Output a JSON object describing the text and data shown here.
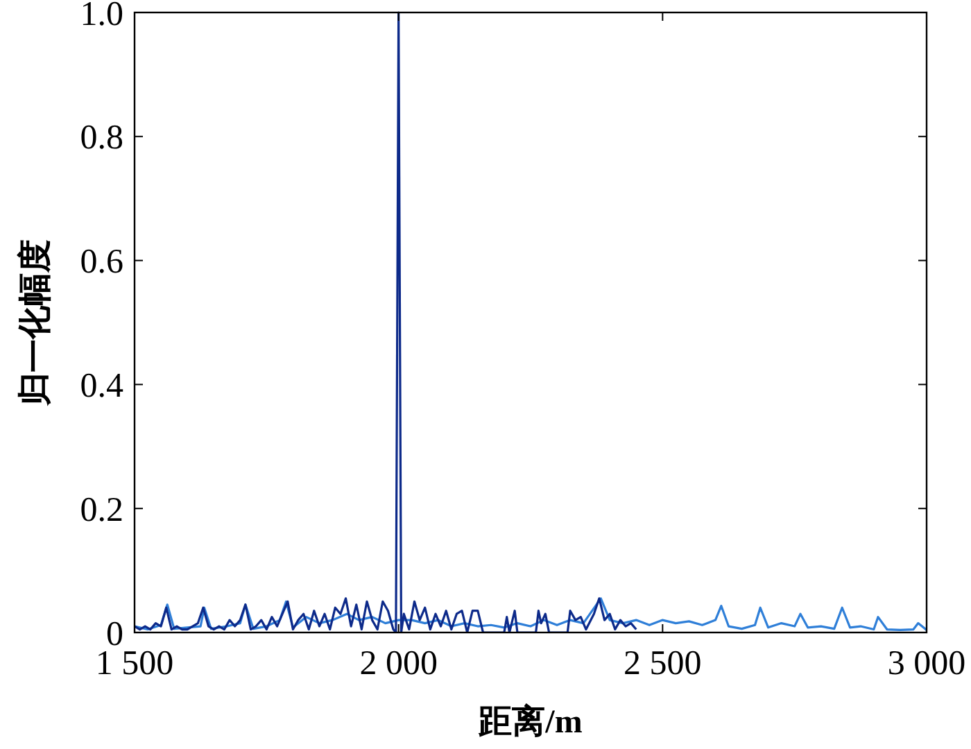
{
  "chart_data": {
    "type": "line",
    "xlabel": "距离/m",
    "ylabel": "归一化幅度",
    "xlim": [
      1500,
      3000
    ],
    "ylim": [
      0,
      1
    ],
    "xticks": [
      {
        "value": 1500,
        "label": "1 500"
      },
      {
        "value": 2000,
        "label": "2 000"
      },
      {
        "value": 2500,
        "label": "2 500"
      },
      {
        "value": 3000,
        "label": "3 000"
      }
    ],
    "yticks": [
      0,
      0.2,
      0.4,
      0.6,
      0.8,
      {
        "value": 1,
        "label": "1.0"
      }
    ],
    "grid": false,
    "series": [
      {
        "color": "#2f7fd8",
        "x": [
          1500,
          1525,
          1550,
          1562,
          1575,
          1600,
          1625,
          1632,
          1645,
          1675,
          1700,
          1710,
          1725,
          1750,
          1775,
          1787,
          1800,
          1825,
          1850,
          1875,
          1902,
          1925,
          1950,
          1975,
          2000,
          2025,
          2050,
          2075,
          2100,
          2125,
          2150,
          2175,
          2200,
          2225,
          2250,
          2275,
          2300,
          2325,
          2350,
          2383,
          2400,
          2425,
          2450,
          2475,
          2500,
          2525,
          2550,
          2575,
          2600,
          2611,
          2625,
          2650,
          2675,
          2685,
          2700,
          2725,
          2750,
          2761,
          2775,
          2800,
          2825,
          2840,
          2855,
          2875,
          2900,
          2908,
          2925,
          2950,
          2975,
          2984,
          3000
        ],
        "values": [
          0.01,
          0.005,
          0.012,
          0.045,
          0.006,
          0.008,
          0.01,
          0.04,
          0.006,
          0.01,
          0.015,
          0.045,
          0.006,
          0.01,
          0.02,
          0.05,
          0.008,
          0.025,
          0.015,
          0.02,
          0.03,
          0.02,
          0.025,
          0.015,
          0.02,
          0.02,
          0.015,
          0.02,
          0.01,
          0.015,
          0.01,
          0.012,
          0.008,
          0.015,
          0.01,
          0.02,
          0.012,
          0.02,
          0.015,
          0.055,
          0.02,
          0.015,
          0.02,
          0.012,
          0.02,
          0.015,
          0.018,
          0.012,
          0.02,
          0.043,
          0.01,
          0.006,
          0.012,
          0.04,
          0.008,
          0.015,
          0.01,
          0.03,
          0.008,
          0.01,
          0.006,
          0.04,
          0.008,
          0.01,
          0.005,
          0.025,
          0.005,
          0.004,
          0.005,
          0.015,
          0.004
        ]
      },
      {
        "color": "#0d2a8a",
        "x": [
          1500,
          1510,
          1520,
          1530,
          1540,
          1550,
          1560,
          1570,
          1580,
          1590,
          1600,
          1610,
          1620,
          1630,
          1640,
          1650,
          1660,
          1670,
          1680,
          1690,
          1700,
          1710,
          1720,
          1730,
          1740,
          1750,
          1760,
          1770,
          1780,
          1790,
          1800,
          1810,
          1820,
          1830,
          1840,
          1850,
          1860,
          1870,
          1880,
          1890,
          1900,
          1910,
          1920,
          1930,
          1940,
          1950,
          1960,
          1970,
          1980,
          1990,
          1995,
          2000,
          2005,
          2010,
          2020,
          2030,
          2040,
          2050,
          2060,
          2070,
          2080,
          2090,
          2100,
          2110,
          2120,
          2130,
          2140,
          2150,
          2160,
          2200,
          2205,
          2210,
          2220,
          2225,
          2260,
          2265,
          2270,
          2278,
          2285,
          2320,
          2325,
          2335,
          2345,
          2355,
          2370,
          2380,
          2390,
          2400,
          2410,
          2420,
          2430,
          2440,
          2450
        ],
        "values": [
          0.01,
          0.005,
          0.01,
          0.005,
          0.015,
          0.01,
          0.04,
          0.005,
          0.01,
          0.005,
          0.005,
          0.01,
          0.015,
          0.04,
          0.01,
          0.005,
          0.01,
          0.005,
          0.02,
          0.01,
          0.02,
          0.045,
          0.005,
          0.01,
          0.02,
          0.005,
          0.025,
          0.01,
          0.03,
          0.05,
          0.005,
          0.02,
          0.03,
          0.005,
          0.035,
          0.01,
          0.03,
          0.005,
          0.04,
          0.03,
          0.055,
          0.01,
          0.045,
          0.005,
          0.05,
          0.02,
          0.005,
          0.05,
          0.035,
          0.005,
          0,
          1.0,
          0,
          0.03,
          0.005,
          0.05,
          0.02,
          0.04,
          0.005,
          0.03,
          0.01,
          0.035,
          0.005,
          0.03,
          0.035,
          0,
          0.035,
          0.035,
          0,
          0,
          0.025,
          0,
          0.035,
          0,
          0,
          0.035,
          0.015,
          0.03,
          0,
          0,
          0.035,
          0.02,
          0.025,
          0.005,
          0.03,
          0.055,
          0.02,
          0.03,
          0.005,
          0.02,
          0.01,
          0.015,
          0.005
        ]
      }
    ]
  }
}
